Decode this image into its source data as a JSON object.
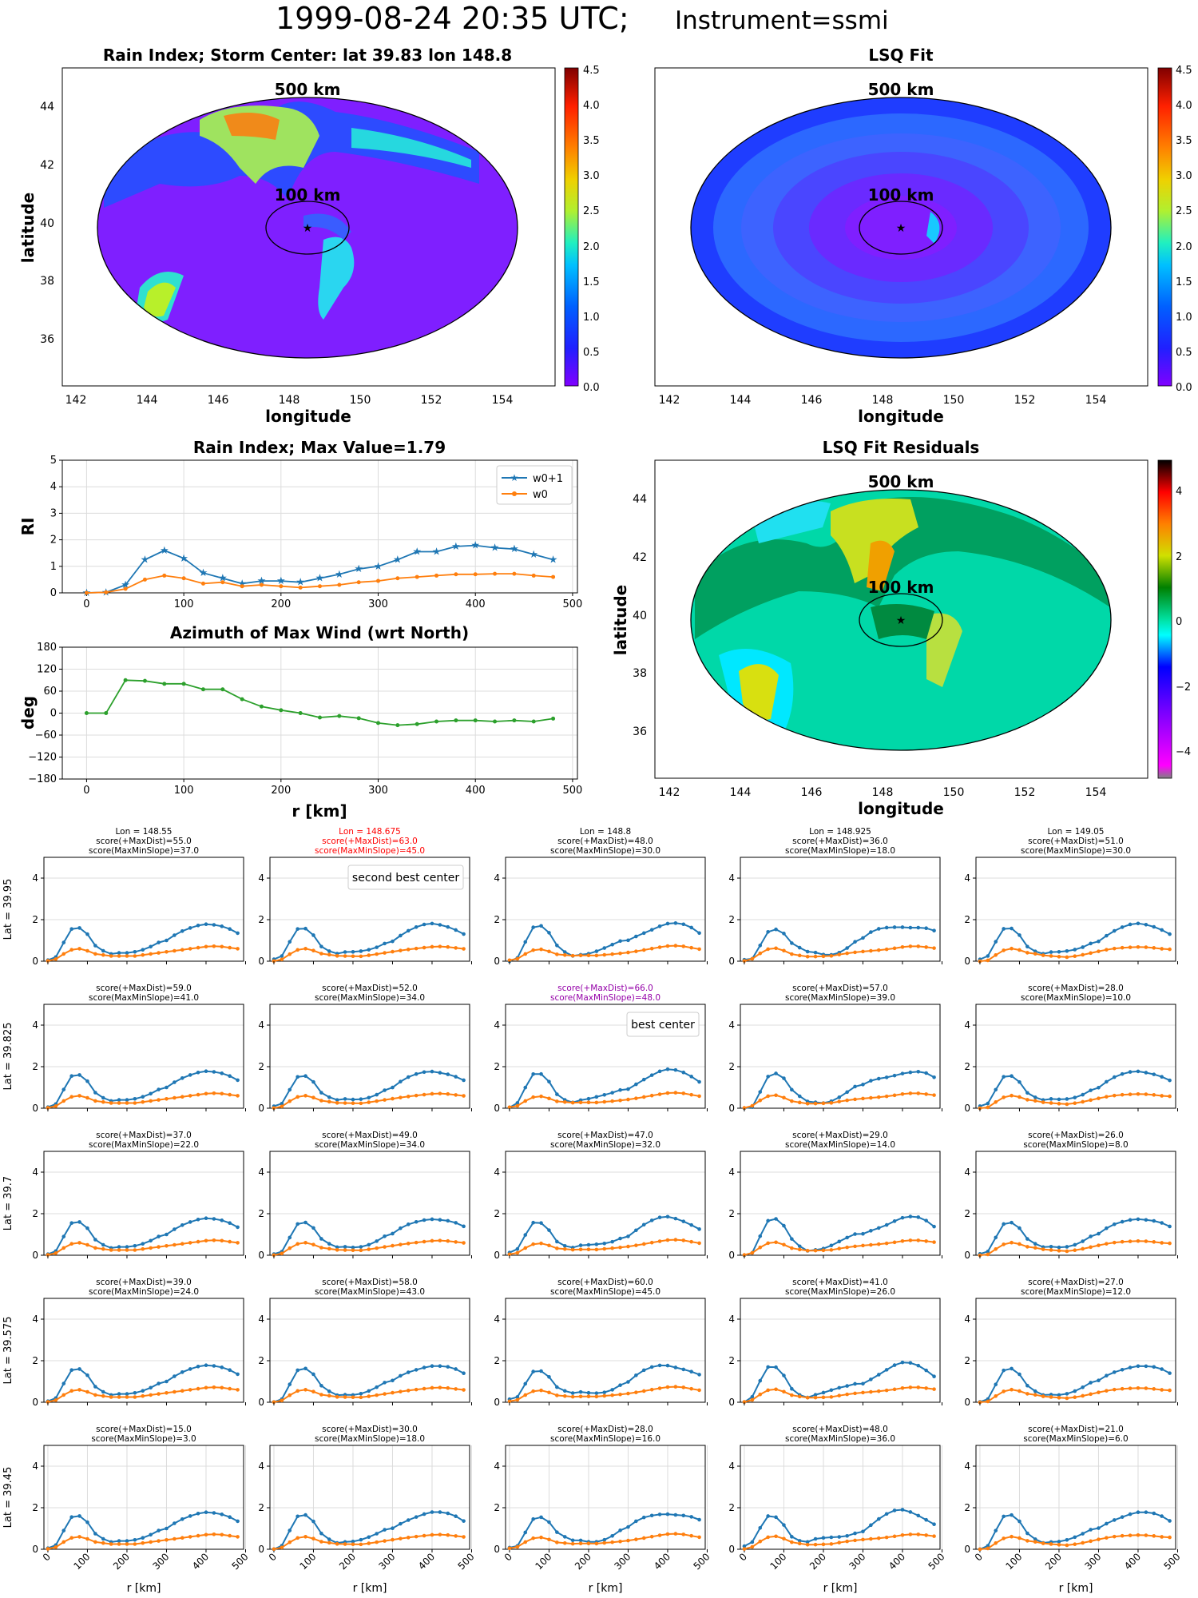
{
  "suptitle": {
    "date": "1999-08-24 20:35 UTC;",
    "instrument": "Instrument=ssmi"
  },
  "maps": {
    "rain": {
      "title": "Rain Index; Storm Center: lat 39.83 lon 148.8",
      "xlabel": "longitude",
      "ylabel": "latitude",
      "xticks": [
        "142",
        "144",
        "146",
        "148",
        "150",
        "152",
        "154"
      ],
      "yticks": [
        "36",
        "38",
        "40",
        "42",
        "44"
      ],
      "ring_outer": "500 km",
      "ring_inner": "100 km",
      "cbar_ticks": [
        "0.0",
        "0.5",
        "1.0",
        "1.5",
        "2.0",
        "2.5",
        "3.0",
        "3.5",
        "4.0",
        "4.5"
      ]
    },
    "lsq": {
      "title": "LSQ Fit",
      "xlabel": "longitude",
      "xticks": [
        "142",
        "144",
        "146",
        "148",
        "150",
        "152",
        "154"
      ],
      "ring_outer": "500 km",
      "ring_inner": "100 km",
      "cbar_ticks": [
        "0.0",
        "0.5",
        "1.0",
        "1.5",
        "2.0",
        "2.5",
        "3.0",
        "3.5",
        "4.0",
        "4.5"
      ]
    },
    "resid": {
      "title": "LSQ Fit Residuals",
      "xlabel": "longitude",
      "ylabel": "latitude",
      "xticks": [
        "142",
        "144",
        "146",
        "148",
        "150",
        "152",
        "154"
      ],
      "yticks": [
        "36",
        "38",
        "40",
        "42",
        "44"
      ],
      "ring_outer": "500 km",
      "ring_inner": "100 km",
      "cbar_ticks": [
        "4",
        "2",
        "0",
        "−2",
        "−4"
      ]
    }
  },
  "chart_data": [
    {
      "type": "line",
      "title": "Rain Index; Max Value=1.79",
      "ylabel": "RI",
      "xlim": [
        -25,
        505
      ],
      "ylim": [
        0,
        5
      ],
      "xticks": [
        "0",
        "100",
        "200",
        "300",
        "400",
        "500"
      ],
      "yticks": [
        "0",
        "1",
        "2",
        "3",
        "4",
        "5"
      ],
      "x": [
        0,
        20,
        40,
        60,
        80,
        100,
        120,
        140,
        160,
        180,
        200,
        220,
        240,
        260,
        280,
        300,
        320,
        340,
        360,
        380,
        400,
        420,
        440,
        460,
        480
      ],
      "series": [
        {
          "name": "w0+1",
          "color": "#1f77b4",
          "marker": "star",
          "values": [
            0,
            0.02,
            0.3,
            1.25,
            1.6,
            1.3,
            0.75,
            0.55,
            0.35,
            0.45,
            0.45,
            0.4,
            0.55,
            0.7,
            0.9,
            1.0,
            1.25,
            1.55,
            1.55,
            1.75,
            1.79,
            1.7,
            1.65,
            1.45,
            1.25
          ]
        },
        {
          "name": "w0",
          "color": "#ff7f0e",
          "marker": "dot",
          "values": [
            0,
            0.02,
            0.15,
            0.5,
            0.65,
            0.55,
            0.35,
            0.4,
            0.25,
            0.3,
            0.25,
            0.2,
            0.25,
            0.3,
            0.4,
            0.45,
            0.55,
            0.6,
            0.65,
            0.7,
            0.7,
            0.72,
            0.72,
            0.65,
            0.6
          ]
        }
      ]
    },
    {
      "type": "line",
      "title": "Azimuth of Max Wind (wrt North)",
      "ylabel": "deg",
      "xlabel": "r [km]",
      "xlim": [
        -25,
        505
      ],
      "ylim": [
        -180,
        180
      ],
      "xticks": [
        "0",
        "100",
        "200",
        "300",
        "400",
        "500"
      ],
      "yticks": [
        "180",
        "120",
        "60",
        "0",
        "−60",
        "−120",
        "−180"
      ],
      "x": [
        0,
        20,
        40,
        60,
        80,
        100,
        120,
        140,
        160,
        180,
        200,
        220,
        240,
        260,
        280,
        300,
        320,
        340,
        360,
        380,
        400,
        420,
        440,
        460,
        480
      ],
      "series": [
        {
          "color": "#2ca02c",
          "values": [
            0,
            0,
            90,
            88,
            80,
            80,
            65,
            65,
            38,
            18,
            8,
            0,
            -12,
            -8,
            -14,
            -27,
            -33,
            -30,
            -23,
            -20,
            -20,
            -23,
            -20,
            -23,
            -15
          ]
        }
      ]
    },
    {
      "type": "line",
      "subtype": "small-multiples",
      "rows": [
        "Lat = 39.95",
        "Lat = 39.825",
        "Lat = 39.7",
        "Lat = 39.575",
        "Lat = 39.45"
      ],
      "cols": [
        "Lon = 148.55",
        "Lon = 148.675",
        "Lon = 148.8",
        "Lon = 148.925",
        "Lon = 149.05"
      ],
      "xlabel": "r [km]",
      "xlim": [
        -10,
        495
      ],
      "ylim": [
        0,
        5
      ],
      "xticks": [
        "0",
        "100",
        "200",
        "300",
        "400",
        "500"
      ],
      "yticks": [
        "0",
        "2",
        "4"
      ],
      "scores": [
        [
          [
            "55.0",
            "37.0"
          ],
          [
            "63.0",
            "45.0"
          ],
          [
            "48.0",
            "30.0"
          ],
          [
            "36.0",
            "18.0"
          ],
          [
            "51.0",
            "30.0"
          ]
        ],
        [
          [
            "59.0",
            "41.0"
          ],
          [
            "52.0",
            "34.0"
          ],
          [
            "66.0",
            "48.0"
          ],
          [
            "57.0",
            "39.0"
          ],
          [
            "28.0",
            "10.0"
          ]
        ],
        [
          [
            "37.0",
            "22.0"
          ],
          [
            "49.0",
            "34.0"
          ],
          [
            "47.0",
            "32.0"
          ],
          [
            "29.0",
            "14.0"
          ],
          [
            "26.0",
            "8.0"
          ]
        ],
        [
          [
            "39.0",
            "24.0"
          ],
          [
            "58.0",
            "43.0"
          ],
          [
            "60.0",
            "45.0"
          ],
          [
            "41.0",
            "26.0"
          ],
          [
            "27.0",
            "12.0"
          ]
        ],
        [
          [
            "15.0",
            "3.0"
          ],
          [
            "30.0",
            "18.0"
          ],
          [
            "28.0",
            "16.0"
          ],
          [
            "48.0",
            "36.0"
          ],
          [
            "21.0",
            "6.0"
          ]
        ]
      ],
      "score_prefix": [
        "score(+MaxDist)=",
        "score(MaxMinSlope)="
      ],
      "highlight": {
        "second": [
          0,
          1
        ],
        "best": [
          1,
          2
        ]
      },
      "annotations": {
        "second": "second best center",
        "best": "best center"
      },
      "x": [
        0,
        20,
        40,
        60,
        80,
        100,
        120,
        140,
        160,
        180,
        200,
        220,
        240,
        260,
        280,
        300,
        320,
        340,
        360,
        380,
        400,
        420,
        440,
        460,
        480
      ],
      "series_colors": [
        "#1f77b4",
        "#ff7f0e"
      ],
      "w0p1": [
        0.05,
        0.2,
        0.9,
        1.55,
        1.6,
        1.3,
        0.75,
        0.5,
        0.35,
        0.4,
        0.4,
        0.45,
        0.55,
        0.7,
        0.9,
        1.0,
        1.25,
        1.45,
        1.6,
        1.72,
        1.78,
        1.75,
        1.68,
        1.55,
        1.35
      ],
      "w0": [
        0.02,
        0.1,
        0.35,
        0.55,
        0.6,
        0.5,
        0.35,
        0.3,
        0.25,
        0.25,
        0.25,
        0.25,
        0.3,
        0.35,
        0.4,
        0.45,
        0.5,
        0.55,
        0.6,
        0.65,
        0.7,
        0.72,
        0.7,
        0.65,
        0.6
      ]
    }
  ]
}
